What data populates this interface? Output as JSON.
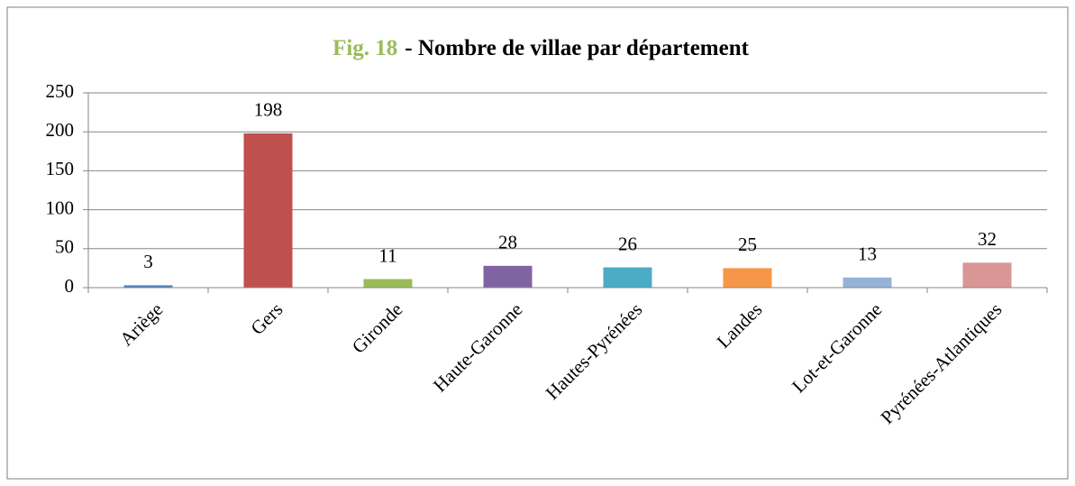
{
  "chart_data": {
    "type": "bar",
    "title_prefix": "Fig. 18",
    "title": "- Nombre de villae par département",
    "categories": [
      "Ariège",
      "Gers",
      "Gironde",
      "Haute-Garonne",
      "Hautes-Pyrénées",
      "Landes",
      "Lot-et-Garonne",
      "Pyrénées-Atlantiques"
    ],
    "values": [
      3,
      198,
      11,
      28,
      26,
      25,
      13,
      32
    ],
    "colors": [
      "#4f81bd",
      "#c0504d",
      "#9bbb59",
      "#8064a2",
      "#4bacc6",
      "#f79646",
      "#95b3d7",
      "#d99694"
    ],
    "ylim": [
      0,
      250
    ],
    "yticks": [
      0,
      50,
      100,
      150,
      200,
      250
    ],
    "grid": true
  }
}
